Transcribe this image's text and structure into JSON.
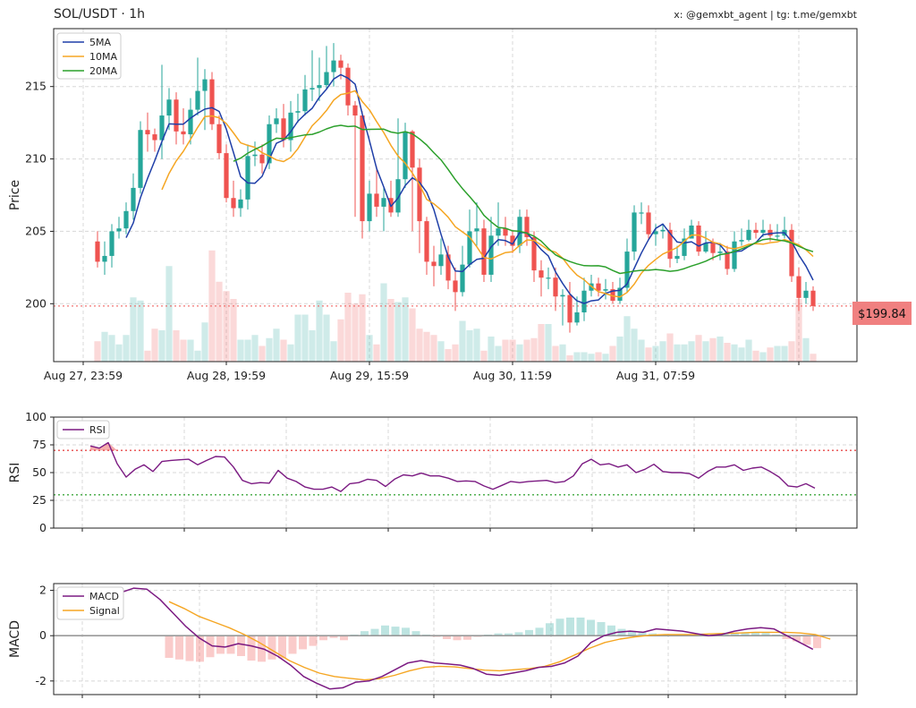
{
  "colors": {
    "up": "#26a69a",
    "down": "#ef5350",
    "ma5": "#1f3fa8",
    "ma10": "#f5a623",
    "ma20": "#2ca02c",
    "rsi": "#7b1a82",
    "macd": "#7b1a82",
    "signal": "#f5a623",
    "overbought": "#e84a4a",
    "oversold": "#3fa83f",
    "price_tag": "#f08080",
    "grid": "#d8d8d8"
  },
  "header": {
    "title": "SOL/USDT · 1h",
    "credit": "x: @gemxbt_agent | tg: t.me/gemxbt"
  },
  "price_tag": "$199.84",
  "chart_data": [
    {
      "type": "candlestick",
      "title": "SOL/USDT · 1h",
      "ylabel": "Price",
      "ylim": [
        196,
        219
      ],
      "yticks": [
        200,
        205,
        210,
        215
      ],
      "xtick_labels": [
        "Aug 27, 23:59",
        "Aug 28, 19:59",
        "Aug 29, 15:59",
        "Aug 30, 11:59",
        "Aug 31, 07:59"
      ],
      "grid": true,
      "legend": {
        "position": "top-left",
        "entries": [
          "5MA",
          "10MA",
          "20MA"
        ]
      },
      "last_price": 199.84,
      "closes": [
        202.9,
        203.3,
        205.0,
        205.2,
        206.4,
        208.0,
        212.0,
        211.7,
        211.3,
        213.0,
        214.1,
        211.9,
        211.7,
        213.4,
        214.7,
        215.5,
        212.4,
        210.4,
        207.3,
        206.6,
        207.2,
        210.2,
        210.3,
        209.7,
        212.4,
        212.8,
        211.3,
        213.2,
        213.3,
        214.8,
        214.9,
        215.1,
        216.0,
        216.8,
        216.3,
        213.7,
        213.0,
        205.7,
        207.6,
        206.7,
        207.3,
        206.3,
        208.6,
        211.9,
        209.4,
        205.7,
        202.9,
        202.6,
        203.4,
        201.6,
        200.8,
        202.7,
        205.0,
        205.2,
        202.0,
        204.7,
        205.2,
        204.7,
        204.0,
        206.0,
        204.6,
        202.3,
        201.8,
        201.8,
        200.5,
        200.6,
        198.7,
        199.4,
        200.9,
        201.4,
        200.9,
        201.0,
        200.2,
        201.1,
        203.6,
        206.3,
        206.3,
        204.8,
        205.0,
        205.1,
        203.1,
        203.3,
        204.5,
        205.4,
        203.6,
        204.2,
        203.5,
        203.6,
        202.4,
        204.3,
        204.4,
        205.1,
        204.9,
        205.1,
        204.7,
        204.7,
        205.1,
        201.9,
        200.4,
        200.9,
        199.84
      ],
      "opens": [
        204.3,
        202.9,
        203.3,
        205.0,
        205.2,
        206.4,
        208.0,
        212.0,
        211.7,
        211.3,
        213.0,
        214.1,
        211.9,
        211.7,
        213.4,
        214.7,
        215.5,
        212.4,
        210.4,
        207.3,
        206.6,
        207.2,
        210.2,
        210.3,
        209.7,
        212.4,
        212.8,
        211.3,
        213.2,
        213.3,
        214.8,
        214.9,
        215.1,
        216.0,
        216.8,
        216.3,
        213.7,
        213.0,
        205.7,
        207.6,
        206.7,
        207.3,
        206.3,
        208.6,
        211.9,
        209.4,
        205.7,
        202.9,
        202.6,
        203.4,
        201.6,
        200.8,
        202.7,
        205.0,
        205.2,
        202.0,
        204.7,
        205.2,
        204.7,
        204.0,
        206.0,
        204.6,
        202.3,
        201.8,
        201.8,
        200.5,
        200.6,
        198.7,
        199.4,
        200.9,
        201.4,
        200.9,
        201.0,
        200.2,
        201.1,
        203.6,
        206.3,
        206.3,
        204.8,
        205.0,
        205.1,
        203.1,
        203.3,
        204.5,
        205.4,
        203.6,
        204.2,
        203.5,
        203.6,
        202.4,
        204.3,
        204.4,
        205.1,
        204.9,
        205.1,
        204.7,
        204.7,
        205.1,
        201.9,
        200.4,
        200.9
      ],
      "highs": [
        205.0,
        204.3,
        205.5,
        206.0,
        207.0,
        209.0,
        212.6,
        213.2,
        212.1,
        216.5,
        214.9,
        214.6,
        213.5,
        214.2,
        217.0,
        216.2,
        216.0,
        213.0,
        211.0,
        208.5,
        207.9,
        211.0,
        211.2,
        211.0,
        213.0,
        213.5,
        213.8,
        214.0,
        214.5,
        215.8,
        217.5,
        217.0,
        217.8,
        218.0,
        217.2,
        216.6,
        214.0,
        213.3,
        208.5,
        209.5,
        208.0,
        208.5,
        212.8,
        212.5,
        212.0,
        210.0,
        206.0,
        204.0,
        204.5,
        204.0,
        202.5,
        204.0,
        206.5,
        207.0,
        205.8,
        206.0,
        207.0,
        206.0,
        205.0,
        206.5,
        206.5,
        205.0,
        203.0,
        202.5,
        202.5,
        201.0,
        201.5,
        200.5,
        201.8,
        202.0,
        201.8,
        201.7,
        201.5,
        201.8,
        204.5,
        206.8,
        207.0,
        206.8,
        205.5,
        205.5,
        205.6,
        204.0,
        205.2,
        205.8,
        205.7,
        205.0,
        204.5,
        204.2,
        204.0,
        205.0,
        205.2,
        205.8,
        205.6,
        205.8,
        205.5,
        205.5,
        206.0,
        205.5,
        202.5,
        201.5,
        201.2
      ],
      "lows": [
        202.5,
        202.0,
        202.5,
        204.5,
        204.8,
        205.8,
        207.6,
        210.5,
        210.5,
        210.0,
        212.0,
        211.0,
        211.0,
        211.0,
        213.0,
        212.0,
        212.0,
        210.0,
        207.0,
        206.0,
        206.0,
        206.5,
        209.5,
        209.0,
        209.3,
        211.8,
        210.8,
        210.5,
        212.5,
        213.0,
        214.0,
        214.0,
        214.8,
        215.0,
        215.5,
        213.0,
        206.0,
        204.5,
        205.0,
        206.0,
        205.0,
        206.0,
        206.0,
        208.0,
        205.0,
        203.5,
        202.0,
        201.2,
        202.0,
        201.0,
        199.5,
        200.5,
        202.5,
        204.0,
        201.5,
        201.5,
        204.0,
        204.0,
        203.5,
        203.5,
        204.0,
        201.5,
        200.5,
        201.0,
        199.5,
        198.5,
        198.0,
        198.5,
        198.8,
        200.5,
        200.5,
        200.3,
        200.0,
        200.0,
        200.8,
        203.0,
        205.5,
        204.5,
        204.0,
        204.5,
        202.5,
        202.8,
        203.0,
        204.5,
        203.3,
        203.5,
        203.0,
        203.0,
        202.0,
        202.2,
        204.0,
        204.3,
        204.5,
        204.6,
        204.3,
        204.4,
        204.5,
        201.5,
        199.5,
        200.0,
        199.5
      ],
      "volumes": [
        0.65,
        0.95,
        0.85,
        0.55,
        0.85,
        2.05,
        1.95,
        0.35,
        1.05,
        1.0,
        3.05,
        1.0,
        0.7,
        0.7,
        0.35,
        1.25,
        3.55,
        2.55,
        2.25,
        2.0,
        0.7,
        0.7,
        0.85,
        0.5,
        0.75,
        1.05,
        0.7,
        0.55,
        1.5,
        1.5,
        1.0,
        1.95,
        1.5,
        0.65,
        1.35,
        2.2,
        1.85,
        2.15,
        0.85,
        0.55,
        2.5,
        2.0,
        1.9,
        2.05,
        1.7,
        1.05,
        0.95,
        0.85,
        0.65,
        0.4,
        0.55,
        1.3,
        1.0,
        1.05,
        0.35,
        0.8,
        0.5,
        0.7,
        0.7,
        0.55,
        0.7,
        0.75,
        1.2,
        1.2,
        0.5,
        0.55,
        0.2,
        0.3,
        0.3,
        0.25,
        0.3,
        0.25,
        0.5,
        0.8,
        1.45,
        1.05,
        0.7,
        0.45,
        0.5,
        0.65,
        0.9,
        0.55,
        0.55,
        0.65,
        0.85,
        0.65,
        0.75,
        0.8,
        0.6,
        0.55,
        0.45,
        0.7,
        0.35,
        0.3,
        0.45,
        0.5,
        0.5,
        0.65,
        2.0,
        0.75,
        0.25
      ]
    },
    {
      "type": "line",
      "ylabel": "RSI",
      "ylim": [
        0,
        100
      ],
      "yticks": [
        0,
        25,
        50,
        75,
        100
      ],
      "levels": [
        70,
        30
      ],
      "grid": true,
      "legend": {
        "position": "top-left",
        "entries": [
          "RSI"
        ]
      },
      "values": [
        74.0,
        72.0,
        77.0,
        58.0,
        46.0,
        53.0,
        57.0,
        51.0,
        60.0,
        61.0,
        61.5,
        62.0,
        57.0,
        61.0,
        64.5,
        64.0,
        55.0,
        43.0,
        40.0,
        41.0,
        40.5,
        52.0,
        45.0,
        42.0,
        37.0,
        35.0,
        35.0,
        37.0,
        33.0,
        40.0,
        41.0,
        44.0,
        43.0,
        37.5,
        44.0,
        48.0,
        47.0,
        49.5,
        47.0,
        47.0,
        45.0,
        42.0,
        42.5,
        42.0,
        38.0,
        35.0,
        38.5,
        42.0,
        41.0,
        42.0,
        42.5,
        43.0,
        41.0,
        42.0,
        47.0,
        58.0,
        62.0,
        57.0,
        58.0,
        55.0,
        57.0,
        50.0,
        53.0,
        57.5,
        51.0,
        50.0,
        50.0,
        49.0,
        45.0,
        51.0,
        55.0,
        55.0,
        57.0,
        52.0,
        54.0,
        55.0,
        51.0,
        46.0,
        38.0,
        37.0,
        40.0,
        36.0
      ]
    },
    {
      "type": "line",
      "ylabel": "MACD",
      "ylim": [
        -2.6,
        2.3
      ],
      "yticks": [
        -2,
        0,
        2
      ],
      "grid": true,
      "legend": {
        "position": "top-left",
        "entries": [
          "MACD",
          "Signal"
        ]
      },
      "series": [
        {
          "name": "MACD",
          "values": [
            1.9,
            2.1,
            2.05,
            1.6,
            1.0,
            0.4,
            -0.1,
            -0.45,
            -0.5,
            -0.35,
            -0.45,
            -0.6,
            -0.9,
            -1.3,
            -1.8,
            -2.1,
            -2.35,
            -2.3,
            -2.05,
            -2.0,
            -1.8,
            -1.5,
            -1.2,
            -1.1,
            -1.2,
            -1.25,
            -1.3,
            -1.45,
            -1.7,
            -1.75,
            -1.65,
            -1.55,
            -1.4,
            -1.35,
            -1.2,
            -0.9,
            -0.3,
            0.0,
            0.15,
            0.2,
            0.15,
            0.3,
            0.25,
            0.2,
            0.1,
            0.0,
            0.05,
            0.2,
            0.3,
            0.35,
            0.3,
            0.0,
            -0.3,
            -0.6
          ]
        },
        {
          "name": "Signal",
          "values": [
            1.5,
            1.2,
            0.85,
            0.6,
            0.35,
            0.05,
            -0.3,
            -0.7,
            -1.1,
            -1.4,
            -1.65,
            -1.8,
            -1.88,
            -1.95,
            -1.9,
            -1.75,
            -1.55,
            -1.4,
            -1.35,
            -1.38,
            -1.45,
            -1.52,
            -1.55,
            -1.5,
            -1.45,
            -1.35,
            -1.15,
            -0.85,
            -0.55,
            -0.3,
            -0.15,
            -0.05,
            0.02,
            0.05,
            0.05,
            0.05,
            0.08,
            0.1,
            0.12,
            0.15,
            0.15,
            0.15,
            0.12,
            0.05,
            -0.15
          ]
        },
        {
          "name": "Histogram",
          "values": [
            -0.98,
            -1.05,
            -1.12,
            -1.15,
            -0.95,
            -0.8,
            -0.8,
            -0.9,
            -1.1,
            -1.15,
            -1.05,
            -1.0,
            -0.8,
            -0.6,
            -0.45,
            -0.2,
            -0.1,
            -0.2,
            0.05,
            0.2,
            0.3,
            0.45,
            0.4,
            0.35,
            0.2,
            0.05,
            -0.05,
            -0.15,
            -0.2,
            -0.18,
            -0.05,
            0.05,
            0.1,
            0.1,
            0.15,
            0.25,
            0.35,
            0.55,
            0.75,
            0.8,
            0.8,
            0.7,
            0.6,
            0.45,
            0.3,
            0.2,
            0.15,
            0.1,
            0.05,
            0.05,
            0.02,
            0.0,
            0.05,
            0.08,
            0.1,
            0.12,
            0.15,
            0.15,
            0.12,
            0.05,
            -0.15,
            -0.25,
            -0.4,
            -0.55
          ]
        }
      ]
    }
  ]
}
